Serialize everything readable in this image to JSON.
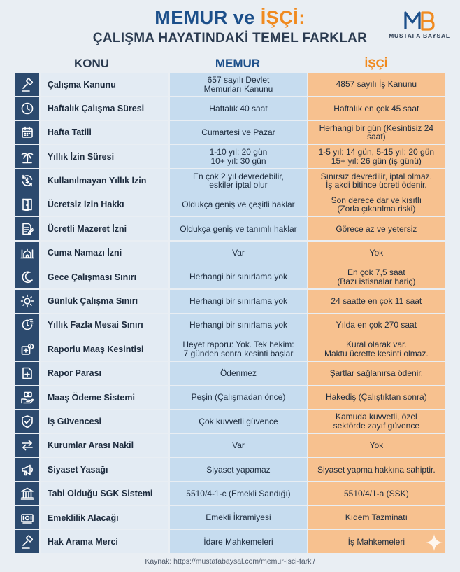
{
  "title": {
    "part1": "MEMUR",
    "part2": "ve",
    "part3": "İŞÇİ:",
    "subtitle": "ÇALIŞMA HAYATINDAKİ TEMEL FARKLAR"
  },
  "logo": {
    "text": "MUSTAFA BAYSAL"
  },
  "columns": {
    "konu": "KONU",
    "memur": "MEMUR",
    "isci": "İŞÇİ"
  },
  "colors": {
    "navy": "#2c4a6e",
    "memur": "#c6dcef",
    "isci": "#f7c18f",
    "accent_orange": "#f08a1f",
    "accent_blue": "#1c4f8a"
  },
  "rows": [
    {
      "icon": "gavel-icon",
      "konu": "Çalışma Kanunu",
      "memur": "657 sayılı Devlet\nMemurları Kanunu",
      "isci": "4857 sayılı İş Kanunu"
    },
    {
      "icon": "clock-icon",
      "konu": "Haftalık Çalışma Süresi",
      "memur": "Haftalık 40 saat",
      "isci": "Haftalık en çok 45 saat"
    },
    {
      "icon": "calendar-icon",
      "konu": "Hafta Tatili",
      "memur": "Cumartesi ve Pazar",
      "isci": "Herhangi bir gün (Kesintisiz 24 saat)"
    },
    {
      "icon": "palm-tree-icon",
      "konu": "Yıllık İzin Süresi",
      "memur": "1-10 yıl: 20 gün\n10+ yıl: 30 gün",
      "isci": "1-5 yıl: 14 gün, 5-15 yıl: 20 gün\n15+ yıl: 26 gün (iş günü)"
    },
    {
      "icon": "cycle-money-icon",
      "konu": "Kullanılmayan Yıllık İzin",
      "memur": "En çok 2 yıl devredebilir,\neskiler iptal olur",
      "isci": "Sınırsız devredilir, iptal olmaz.\nİş akdi bitince ücreti ödenir."
    },
    {
      "icon": "door-icon",
      "konu": "Ücretsiz İzin Hakkı",
      "memur": "Oldukça geniş ve çeşitli haklar",
      "isci": "Son derece dar ve kısıtlı\n(Zorla çıkarılma riski)"
    },
    {
      "icon": "document-pen-icon",
      "konu": "Ücretli Mazeret İzni",
      "memur": "Oldukça geniş ve tanımlı haklar",
      "isci": "Görece az ve yetersiz"
    },
    {
      "icon": "mosque-icon",
      "konu": "Cuma Namazı İzni",
      "memur": "Var",
      "isci": "Yok"
    },
    {
      "icon": "moon-icon",
      "konu": "Gece Çalışması Sınırı",
      "memur": "Herhangi bir sınırlama yok",
      "isci": "En çok 7,5 saat\n(Bazı istisnalar hariç)"
    },
    {
      "icon": "sun-icon",
      "konu": "Günlük Çalışma Sınırı",
      "memur": "Herhangi bir sınırlama yok",
      "isci": "24 saatte en çok 11 saat"
    },
    {
      "icon": "overtime-clock-icon",
      "konu": "Yıllık Fazla Mesai Sınırı",
      "memur": "Herhangi bir sınırlama yok",
      "isci": "Yılda en çok 270 saat"
    },
    {
      "icon": "medical-money-icon",
      "konu": "Raporlu Maaş Kesintisi",
      "memur": "Heyet raporu: Yok. Tek hekim:\n7 günden sonra kesinti başlar",
      "isci": "Kural olarak var.\nMaktu ücrette kesinti olmaz."
    },
    {
      "icon": "medical-report-icon",
      "konu": "Rapor Parası",
      "memur": "Ödenmez",
      "isci": "Şartlar sağlanırsa ödenir."
    },
    {
      "icon": "money-hand-icon",
      "konu": "Maaş Ödeme Sistemi",
      "memur": "Peşin (Çalışmadan önce)",
      "isci": "Hakediş (Çalıştıktan sonra)"
    },
    {
      "icon": "shield-check-icon",
      "konu": "İş Güvencesi",
      "memur": "Çok kuvvetli güvence",
      "isci": "Kamuda kuvvetli, özel\nsektörde zayıf güvence"
    },
    {
      "icon": "transfer-arrows-icon",
      "konu": "Kurumlar Arası Nakil",
      "memur": "Var",
      "isci": "Yok"
    },
    {
      "icon": "megaphone-icon",
      "konu": "Siyaset Yasağı",
      "memur": "Siyaset yapamaz",
      "isci": "Siyaset yapma hakkına sahiptir."
    },
    {
      "icon": "bank-icon",
      "konu": "Tabi Olduğu SGK Sistemi",
      "memur": "5510/4-1-c (Emekli Sandığı)",
      "isci": "5510/4/1-a (SSK)"
    },
    {
      "icon": "banknote-icon",
      "konu": "Emeklilik Alacağı",
      "memur": "Emekli İkramiyesi",
      "isci": "Kıdem Tazminatı"
    },
    {
      "icon": "gavel-icon",
      "konu": "Hak Arama Merci",
      "memur": "İdare Mahkemeleri",
      "isci": "İş Mahkemeleri"
    }
  ],
  "footer": {
    "source": "Kaynak: https://mustafabaysal.com/memur-isci-farki/"
  }
}
